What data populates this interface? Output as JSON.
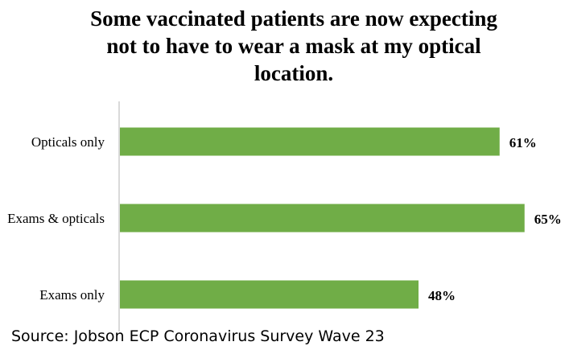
{
  "chart_data": {
    "type": "bar",
    "orientation": "horizontal",
    "title_lines": [
      "Some vaccinated patients are now expecting",
      "not to have to wear a mask at my optical",
      "location."
    ],
    "categories": [
      "Opticals only",
      "Exams & opticals",
      "Exams only"
    ],
    "values": [
      61,
      65,
      48
    ],
    "value_labels": [
      "61%",
      "65%",
      "48%"
    ],
    "bar_color": "#70AD47",
    "axis_line_color": "#D9D9D9",
    "xlim": [
      0,
      70
    ],
    "grid": false,
    "legend": "none"
  },
  "footer": {
    "source": "Source: Jobson ECP Coronavirus Survey Wave 23"
  }
}
